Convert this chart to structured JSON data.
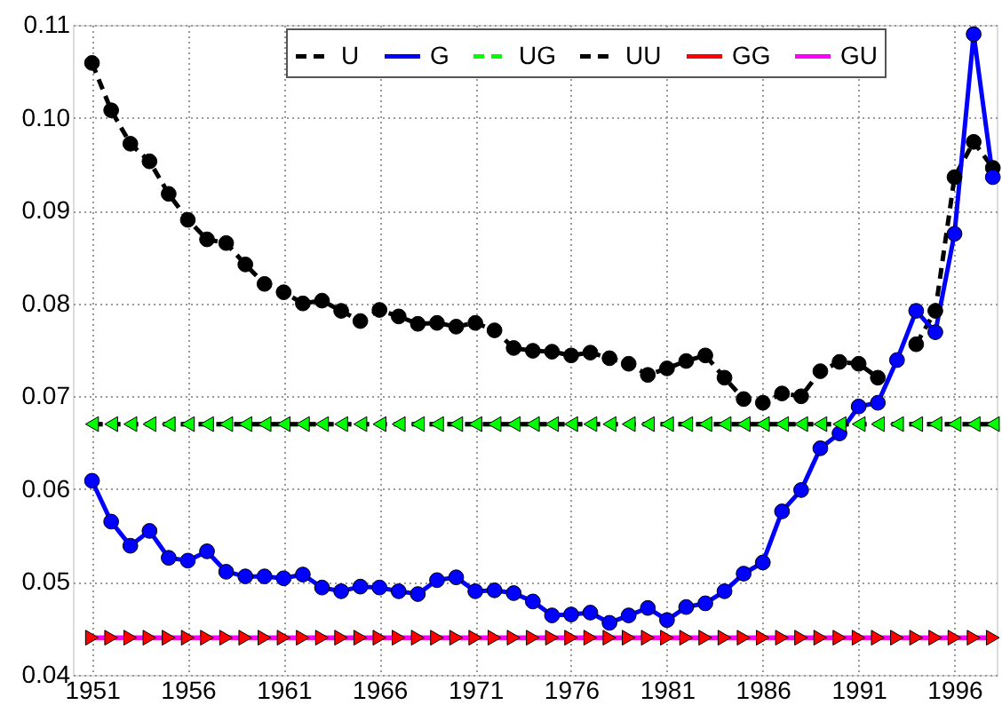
{
  "chart_data": {
    "type": "line",
    "x": [
      1951,
      1952,
      1953,
      1954,
      1955,
      1956,
      1957,
      1958,
      1959,
      1960,
      1961,
      1962,
      1963,
      1964,
      1965,
      1966,
      1967,
      1968,
      1969,
      1970,
      1971,
      1972,
      1973,
      1974,
      1975,
      1976,
      1977,
      1978,
      1979,
      1980,
      1981,
      1982,
      1983,
      1984,
      1985,
      1986,
      1987,
      1988,
      1989,
      1990,
      1991,
      1992,
      1993,
      1994,
      1995,
      1996,
      1997,
      1998
    ],
    "series": [
      {
        "name": "U",
        "color": "#000000",
        "marker": "circle",
        "line_style": "dashed",
        "values": [
          0.1059,
          0.1008,
          0.0972,
          0.0953,
          0.0918,
          0.089,
          0.0869,
          0.0865,
          0.0842,
          0.0821,
          0.0812,
          0.08,
          0.0803,
          0.0792,
          0.0781,
          0.0793,
          0.0786,
          0.0778,
          0.0779,
          0.0775,
          0.0779,
          0.0771,
          0.0752,
          0.0749,
          0.0748,
          0.0744,
          0.0747,
          0.0741,
          0.0735,
          0.0723,
          0.073,
          0.0738,
          0.0744,
          0.072,
          0.0697,
          0.0693,
          0.0703,
          0.07,
          0.0727,
          0.0737,
          0.0735,
          0.072,
          null,
          0.0756,
          0.0792,
          0.0936,
          0.0974,
          0.0946
        ]
      },
      {
        "name": "G",
        "color": "#0000ff",
        "marker": "circle",
        "line_style": "solid",
        "values": [
          0.0609,
          0.0565,
          0.0539,
          0.0555,
          0.0526,
          0.0523,
          0.0533,
          0.0511,
          0.0506,
          0.0506,
          0.0504,
          0.0508,
          0.0494,
          0.049,
          0.0495,
          0.0494,
          0.049,
          0.0487,
          0.0502,
          0.0505,
          0.049,
          0.0491,
          0.0488,
          0.0479,
          0.0464,
          0.0465,
          0.0467,
          0.0456,
          0.0464,
          0.0472,
          0.0459,
          0.0473,
          0.0477,
          0.049,
          0.0509,
          0.0521,
          0.0576,
          0.0599,
          0.0644,
          0.066,
          0.0689,
          0.0693,
          0.0739,
          0.0792,
          0.0769,
          0.0875,
          0.109,
          0.0936
        ]
      },
      {
        "name": "UG",
        "color": "#00ff00",
        "marker": "triangle-left",
        "line_style": "dashed",
        "values": [
          0.067,
          0.067,
          0.067,
          0.067,
          0.067,
          0.067,
          0.067,
          0.067,
          0.067,
          0.067,
          0.067,
          0.067,
          0.067,
          0.067,
          0.067,
          0.067,
          0.067,
          0.067,
          0.067,
          0.067,
          0.067,
          0.067,
          0.067,
          0.067,
          0.067,
          0.067,
          0.067,
          0.067,
          0.067,
          0.067,
          0.067,
          0.067,
          0.067,
          0.067,
          0.067,
          0.067,
          0.067,
          0.067,
          0.067,
          0.067,
          0.067,
          0.067,
          0.067,
          0.067,
          0.067,
          0.067,
          0.067,
          0.067
        ]
      },
      {
        "name": "UU",
        "color": "#000000",
        "marker": "none",
        "line_style": "dashed",
        "values": [
          0.067,
          0.067,
          0.067,
          0.067,
          0.067,
          0.067,
          0.067,
          0.067,
          0.067,
          0.067,
          0.067,
          0.067,
          0.067,
          0.067,
          0.067,
          0.067,
          0.067,
          0.067,
          0.067,
          0.067,
          0.067,
          0.067,
          0.067,
          0.067,
          0.067,
          0.067,
          0.067,
          0.067,
          0.067,
          0.067,
          0.067,
          0.067,
          0.067,
          0.067,
          0.067,
          0.067,
          0.067,
          0.067,
          0.067,
          0.067,
          0.067,
          0.067,
          0.067,
          0.067,
          0.067,
          0.067,
          0.067,
          0.067
        ]
      },
      {
        "name": "GG",
        "color": "#ff0000",
        "marker": "triangle-right",
        "line_style": "solid",
        "values": [
          0.044,
          0.044,
          0.044,
          0.044,
          0.044,
          0.044,
          0.044,
          0.044,
          0.044,
          0.044,
          0.044,
          0.044,
          0.044,
          0.044,
          0.044,
          0.044,
          0.044,
          0.044,
          0.044,
          0.044,
          0.044,
          0.044,
          0.044,
          0.044,
          0.044,
          0.044,
          0.044,
          0.044,
          0.044,
          0.044,
          0.044,
          0.044,
          0.044,
          0.044,
          0.044,
          0.044,
          0.044,
          0.044,
          0.044,
          0.044,
          0.044,
          0.044,
          0.044,
          0.044,
          0.044,
          0.044,
          0.044,
          0.044
        ]
      },
      {
        "name": "GU",
        "color": "#ff00ff",
        "marker": "none",
        "line_style": "solid",
        "values": [
          0.044,
          0.044,
          0.044,
          0.044,
          0.044,
          0.044,
          0.044,
          0.044,
          0.044,
          0.044,
          0.044,
          0.044,
          0.044,
          0.044,
          0.044,
          0.044,
          0.044,
          0.044,
          0.044,
          0.044,
          0.044,
          0.044,
          0.044,
          0.044,
          0.044,
          0.044,
          0.044,
          0.044,
          0.044,
          0.044,
          0.044,
          0.044,
          0.044,
          0.044,
          0.044,
          0.044,
          0.044,
          0.044,
          0.044,
          0.044,
          0.044,
          0.044,
          0.044,
          0.044,
          0.044,
          0.044,
          0.044,
          0.044
        ]
      }
    ],
    "xlim": [
      1950,
      1998.2
    ],
    "xticks": [
      1951,
      1956,
      1961,
      1966,
      1971,
      1976,
      1981,
      1986,
      1991,
      1996
    ],
    "ylim": [
      0.04,
      0.11
    ],
    "yticks": [
      0.04,
      0.05,
      0.06,
      0.07,
      0.08,
      0.09,
      {
        "value": 0.1,
        "label": "0.10"
      },
      0.11
    ],
    "grid": true,
    "legend": "top"
  }
}
